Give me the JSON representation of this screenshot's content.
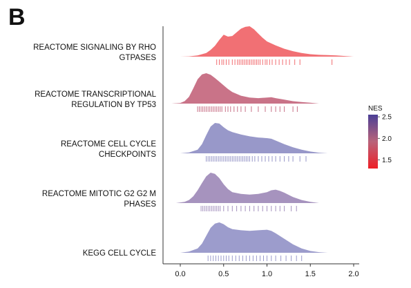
{
  "panel_label": "B",
  "chart_data": {
    "type": "ridgeline",
    "xlabel": "",
    "ylabel": "",
    "xlim": [
      -0.2,
      2.1
    ],
    "x_ticks": [
      "0.0",
      "0.5",
      "1.0",
      "1.5",
      "2.0"
    ],
    "legend": {
      "title": "NES",
      "ticks": [
        "1.5",
        "2.0",
        "2.5"
      ],
      "range": [
        1.3,
        2.55
      ],
      "low_color": "#ee1f26",
      "mid_color": "#b9637a",
      "high_color": "#4b3f96",
      "placement": "right"
    },
    "series": [
      {
        "name": "REACTOME SIGNALING BY RHO GTPASES",
        "label_lines": [
          "REACTOME SIGNALING BY RHO",
          "GTPASES"
        ],
        "nes": 1.45,
        "fill": "#f06468",
        "x": [
          0.0,
          0.1,
          0.2,
          0.3,
          0.35,
          0.4,
          0.45,
          0.5,
          0.55,
          0.6,
          0.65,
          0.7,
          0.75,
          0.8,
          0.85,
          0.9,
          0.95,
          1.0,
          1.1,
          1.2,
          1.3,
          1.4,
          1.5,
          1.6,
          1.7,
          1.8,
          1.9,
          2.0
        ],
        "density": [
          0.0,
          0.01,
          0.04,
          0.12,
          0.22,
          0.36,
          0.55,
          0.72,
          0.66,
          0.68,
          0.8,
          0.92,
          0.98,
          1.0,
          0.9,
          0.76,
          0.62,
          0.5,
          0.37,
          0.26,
          0.18,
          0.12,
          0.08,
          0.06,
          0.05,
          0.04,
          0.02,
          0.0
        ],
        "genes": [
          0.42,
          0.45,
          0.48,
          0.5,
          0.53,
          0.56,
          0.6,
          0.63,
          0.66,
          0.68,
          0.7,
          0.72,
          0.74,
          0.76,
          0.78,
          0.8,
          0.82,
          0.84,
          0.86,
          0.88,
          0.9,
          0.92,
          0.95,
          0.98,
          1.0,
          1.03,
          1.06,
          1.1,
          1.14,
          1.18,
          1.22,
          1.26,
          1.32,
          1.38,
          1.75
        ]
      },
      {
        "name": "REACTOME TRANSCRIPTIONAL REGULATION BY TP53",
        "label_lines": [
          "REACTOME TRANSCRIPTIONAL",
          "REGULATION BY TP53"
        ],
        "nes": 1.95,
        "fill": "#c4677e",
        "x": [
          -0.1,
          0.0,
          0.05,
          0.1,
          0.15,
          0.2,
          0.25,
          0.3,
          0.35,
          0.4,
          0.45,
          0.5,
          0.55,
          0.6,
          0.7,
          0.8,
          0.9,
          1.0,
          1.05,
          1.1,
          1.2,
          1.3,
          1.4,
          1.5,
          1.6
        ],
        "density": [
          0.0,
          0.02,
          0.08,
          0.22,
          0.5,
          0.8,
          0.96,
          1.0,
          0.95,
          0.84,
          0.72,
          0.6,
          0.48,
          0.38,
          0.26,
          0.2,
          0.18,
          0.2,
          0.21,
          0.18,
          0.13,
          0.08,
          0.05,
          0.03,
          0.0
        ],
        "genes": [
          0.2,
          0.22,
          0.24,
          0.26,
          0.28,
          0.3,
          0.32,
          0.34,
          0.36,
          0.38,
          0.4,
          0.42,
          0.44,
          0.46,
          0.48,
          0.52,
          0.55,
          0.58,
          0.62,
          0.66,
          0.7,
          0.75,
          0.82,
          0.9,
          0.98,
          1.05,
          1.1,
          1.15,
          1.2,
          1.3,
          1.35
        ]
      },
      {
        "name": "REACTOME CELL CYCLE CHECKPOINTS",
        "label_lines": [
          "REACTOME CELL CYCLE",
          "CHECKPOINTS"
        ],
        "nes": 2.45,
        "fill": "#8f8fc4",
        "x": [
          0.0,
          0.1,
          0.2,
          0.25,
          0.3,
          0.35,
          0.4,
          0.45,
          0.5,
          0.55,
          0.6,
          0.7,
          0.8,
          0.9,
          1.0,
          1.05,
          1.1,
          1.2,
          1.3,
          1.4,
          1.5,
          1.6,
          1.7
        ],
        "density": [
          0.0,
          0.03,
          0.12,
          0.3,
          0.6,
          0.88,
          1.0,
          0.98,
          0.86,
          0.76,
          0.7,
          0.62,
          0.56,
          0.52,
          0.5,
          0.48,
          0.42,
          0.3,
          0.2,
          0.12,
          0.06,
          0.02,
          0.0
        ],
        "genes": [
          0.3,
          0.32,
          0.34,
          0.36,
          0.38,
          0.4,
          0.42,
          0.44,
          0.46,
          0.48,
          0.5,
          0.52,
          0.54,
          0.56,
          0.58,
          0.6,
          0.62,
          0.64,
          0.66,
          0.68,
          0.7,
          0.72,
          0.74,
          0.76,
          0.78,
          0.8,
          0.83,
          0.86,
          0.9,
          0.94,
          0.98,
          1.02,
          1.06,
          1.1,
          1.15,
          1.2,
          1.25,
          1.3,
          1.38,
          1.45
        ]
      },
      {
        "name": "REACTOME MITOTIC G2 G2 M PHASES",
        "label_lines": [
          "REACTOME MITOTIC G2 G2 M",
          "PHASES"
        ],
        "nes": 2.3,
        "fill": "#9e8ab9",
        "x": [
          -0.05,
          0.05,
          0.1,
          0.15,
          0.2,
          0.25,
          0.3,
          0.35,
          0.4,
          0.45,
          0.5,
          0.55,
          0.6,
          0.7,
          0.8,
          0.9,
          1.0,
          1.05,
          1.1,
          1.15,
          1.2,
          1.3,
          1.4,
          1.5,
          1.6
        ],
        "density": [
          0.0,
          0.04,
          0.1,
          0.22,
          0.42,
          0.66,
          0.88,
          1.0,
          0.96,
          0.82,
          0.62,
          0.46,
          0.36,
          0.3,
          0.28,
          0.3,
          0.36,
          0.42,
          0.44,
          0.4,
          0.34,
          0.2,
          0.1,
          0.04,
          0.0
        ],
        "genes": [
          0.24,
          0.26,
          0.28,
          0.3,
          0.32,
          0.34,
          0.36,
          0.38,
          0.4,
          0.42,
          0.44,
          0.46,
          0.5,
          0.55,
          0.6,
          0.65,
          0.7,
          0.75,
          0.8,
          0.85,
          0.9,
          0.95,
          1.0,
          1.05,
          1.1,
          1.15,
          1.2,
          1.28,
          1.34
        ]
      },
      {
        "name": "KEGG CELL CYCLE",
        "label_lines": [
          "KEGG CELL CYCLE"
        ],
        "nes": 2.4,
        "fill": "#9494c8",
        "x": [
          0.0,
          0.1,
          0.2,
          0.25,
          0.3,
          0.35,
          0.4,
          0.45,
          0.5,
          0.55,
          0.6,
          0.7,
          0.8,
          0.9,
          1.0,
          1.05,
          1.1,
          1.2,
          1.3,
          1.4,
          1.5,
          1.6,
          1.7
        ],
        "density": [
          0.0,
          0.04,
          0.14,
          0.3,
          0.56,
          0.82,
          0.96,
          1.0,
          0.94,
          0.84,
          0.78,
          0.74,
          0.72,
          0.74,
          0.76,
          0.72,
          0.64,
          0.46,
          0.28,
          0.14,
          0.06,
          0.02,
          0.0
        ],
        "genes": [
          0.32,
          0.35,
          0.38,
          0.41,
          0.44,
          0.47,
          0.5,
          0.53,
          0.56,
          0.6,
          0.64,
          0.68,
          0.72,
          0.76,
          0.8,
          0.84,
          0.88,
          0.92,
          0.96,
          1.0,
          1.05,
          1.1,
          1.16,
          1.22,
          1.28,
          1.34,
          1.4
        ]
      }
    ]
  }
}
